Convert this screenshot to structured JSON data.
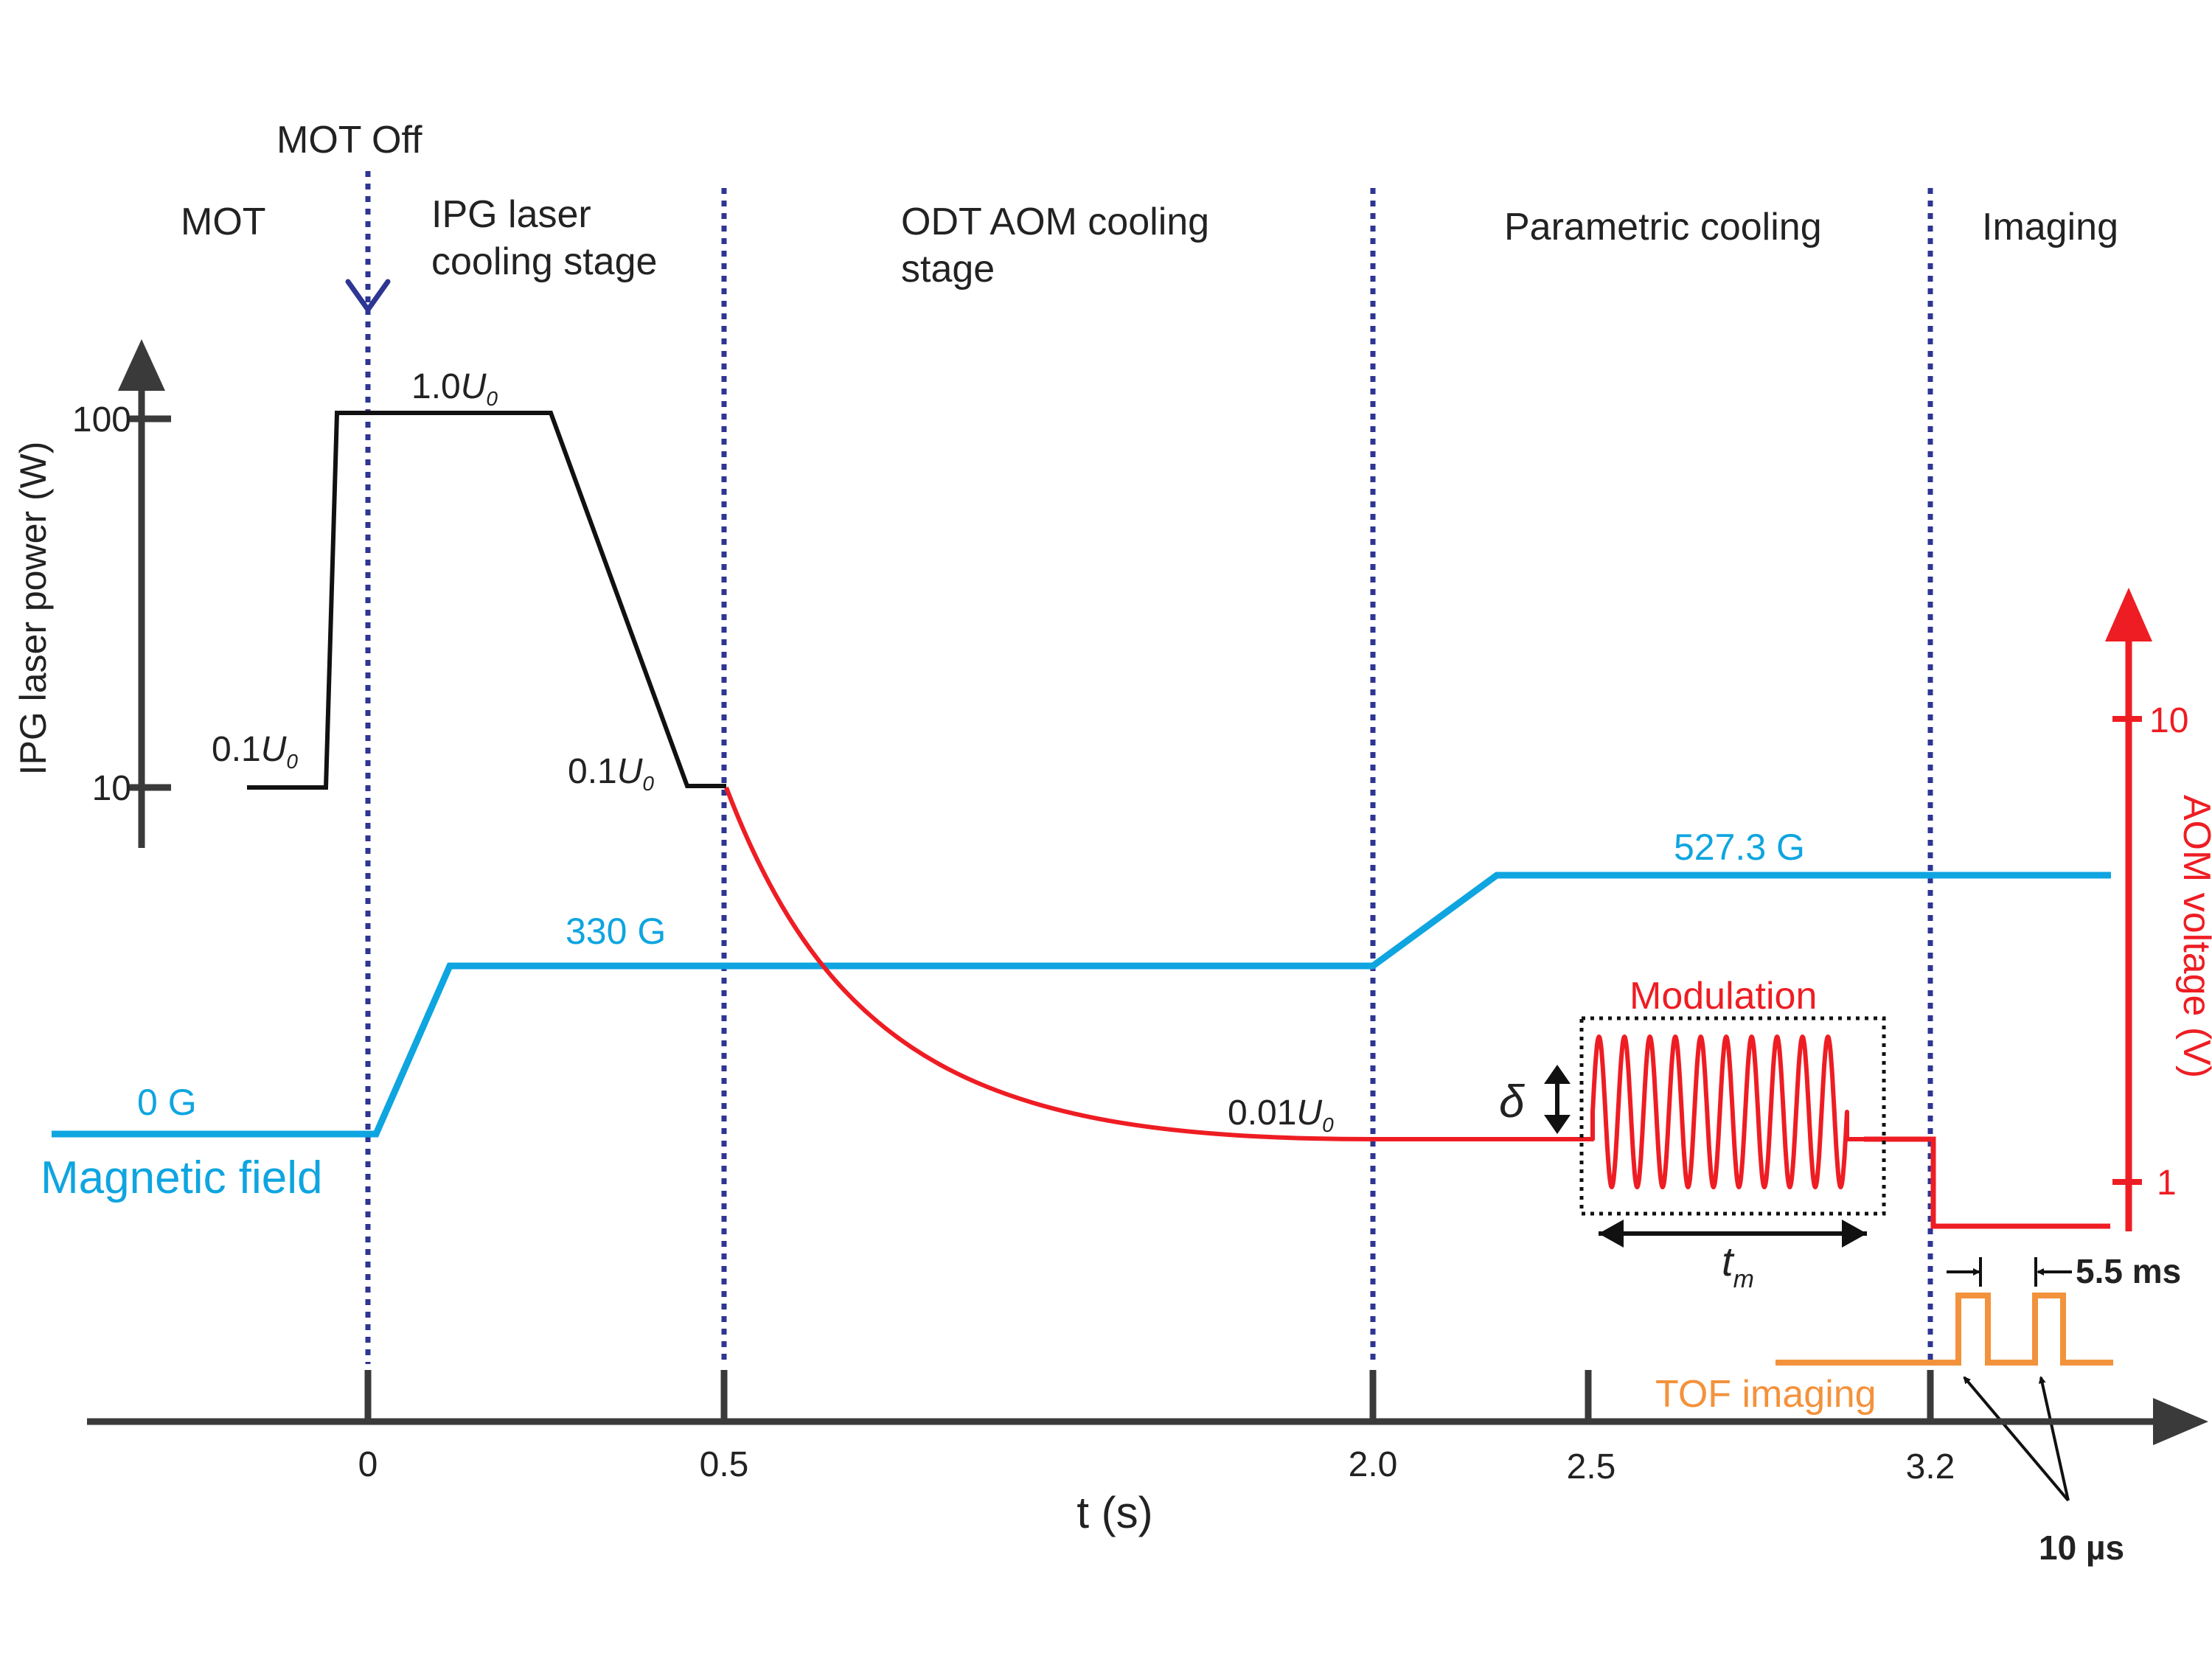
{
  "colors": {
    "black": "#111111",
    "blue": "#0ea5e0",
    "red": "#ee1d23",
    "orange": "#f3923c",
    "navy": "#2e3592",
    "gray": "#3a3a3a"
  },
  "top": {
    "mot_off": "MOT Off"
  },
  "stages": {
    "mot": "MOT",
    "ipg_line1": "IPG laser",
    "ipg_line2": "cooling stage",
    "odt_line1": "ODT AOM cooling",
    "odt_line2": "stage",
    "parametric": "Parametric cooling",
    "imaging": "Imaging"
  },
  "left_axis": {
    "label": "IPG laser power (W)",
    "tick_100": "100",
    "tick_10": "10"
  },
  "right_axis": {
    "label": "AOM voltage (V)",
    "tick_10": "10",
    "tick_1": "1"
  },
  "power_labels": {
    "high_num": "1.0",
    "low_left_num": "0.1",
    "low_right_num": "0.1",
    "final_num": "0.01",
    "u_symbol": "U",
    "u_sub": "0"
  },
  "field": {
    "zero": "0 G",
    "mid": "330 G",
    "high": "527.3 G",
    "name": "Magnetic field"
  },
  "modulation": {
    "title": "Modulation",
    "delta": "δ",
    "tm_symbol": "t",
    "tm_sub": "m"
  },
  "tof": {
    "label": "TOF imaging",
    "gap": "5.5 ms",
    "pulse": "10 µs"
  },
  "time_axis": {
    "label": "t (s)",
    "ticks": [
      "0",
      "0.5",
      "2.0",
      "2.5",
      "3.2"
    ]
  }
}
